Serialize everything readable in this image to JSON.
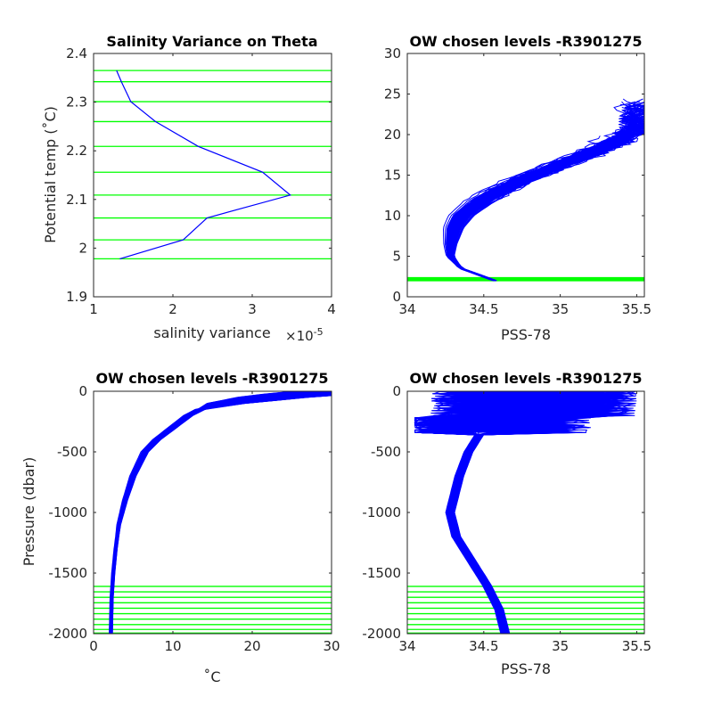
{
  "figure_id": "R3901275",
  "colors": {
    "profiles": "#0000ff",
    "levels": "#00ff00",
    "axes": "#262626"
  },
  "chart_data": [
    {
      "type": "line",
      "title": "Salinity Variance on Theta",
      "xlabel": "salinity variance",
      "x_exponent_label": "×10",
      "x_exponent_value": "-5",
      "ylabel": "Potential temp (˚C)",
      "xlim": [
        1,
        4
      ],
      "ylim": [
        1.9,
        2.4
      ],
      "xticks": [
        "1",
        "2",
        "3",
        "4"
      ],
      "yticks": [
        "1.9",
        "2",
        "2.1",
        "2.2",
        "2.3",
        "2.4"
      ],
      "series": [
        {
          "x": [
            1.33,
            2.13,
            2.43,
            3.48,
            3.13,
            2.32,
            1.78,
            1.47,
            1.35,
            1.29
          ],
          "y": [
            1.978,
            2.017,
            2.062,
            2.109,
            2.156,
            2.209,
            2.26,
            2.301,
            2.342,
            2.365
          ]
        }
      ],
      "chosen_levels_theta": [
        1.978,
        2.017,
        2.062,
        2.109,
        2.156,
        2.209,
        2.26,
        2.301,
        2.342,
        2.365
      ],
      "grid": false
    },
    {
      "type": "line",
      "title": "OW chosen levels -R3901275",
      "xlabel": "PSS-78",
      "ylabel": "",
      "xlim": [
        34,
        35.55
      ],
      "ylim": [
        0,
        30
      ],
      "xticks": [
        "34",
        "34.5",
        "35",
        "35.5"
      ],
      "yticks": [
        "0",
        "5",
        "10",
        "15",
        "20",
        "25",
        "30"
      ],
      "description": "Theta–salinity profiles (many floats, blue) with chosen theta levels (green) near 2 °C",
      "mean_profile": {
        "salinity": [
          34.57,
          34.35,
          34.28,
          34.28,
          34.3,
          34.35,
          34.45,
          34.58,
          34.75,
          34.95,
          35.15,
          35.35,
          35.5
        ],
        "theta": [
          2.0,
          3.5,
          5.0,
          6.5,
          8.5,
          10.0,
          11.5,
          13.0,
          14.5,
          16.0,
          17.5,
          19.0,
          21.0
        ]
      },
      "chosen_levels_theta": [
        1.978,
        2.017,
        2.062,
        2.109,
        2.156,
        2.209,
        2.26,
        2.301,
        2.342,
        2.365
      ],
      "grid": false
    },
    {
      "type": "line",
      "title": "OW chosen levels -R3901275",
      "xlabel": "˚C",
      "ylabel": "Pressure (dbar)",
      "xlim": [
        0,
        30
      ],
      "ylim": [
        -2000,
        0
      ],
      "xticks": [
        "0",
        "10",
        "20",
        "30"
      ],
      "yticks": [
        "-2000",
        "-1500",
        "-1000",
        "-500",
        "0"
      ],
      "description": "Temperature vs pressure profiles with chosen pressure levels (green) below 1600 dbar",
      "mean_profile": {
        "temperature": [
          26.5,
          20.0,
          15.0,
          12.0,
          10.0,
          8.0,
          6.5,
          5.0,
          4.0,
          3.2,
          2.8,
          2.5,
          2.3,
          2.2
        ],
        "pressure": [
          0,
          -40,
          -100,
          -200,
          -300,
          -400,
          -500,
          -700,
          -900,
          -1100,
          -1300,
          -1500,
          -1700,
          -2000
        ]
      },
      "chosen_levels_pressure": [
        -1610,
        -1655,
        -1700,
        -1745,
        -1790,
        -1835,
        -1880,
        -1925,
        -1965,
        -1995
      ],
      "grid": false
    },
    {
      "type": "line",
      "title": "OW chosen levels -R3901275",
      "xlabel": "PSS-78",
      "ylabel": "",
      "xlim": [
        34,
        35.55
      ],
      "ylim": [
        -2000,
        0
      ],
      "xticks": [
        "34",
        "34.5",
        "35",
        "35.5"
      ],
      "yticks": [
        "-2000",
        "-1500",
        "-1000",
        "-500",
        "0"
      ],
      "description": "Salinity vs pressure profiles with chosen pressure levels (green) below 1600 dbar",
      "mean_profile": {
        "salinity": [
          34.6,
          34.5,
          34.4,
          34.34,
          34.3,
          34.28,
          34.32,
          34.42,
          34.52,
          34.6,
          34.64
        ],
        "pressure": [
          -100,
          -300,
          -500,
          -700,
          -900,
          -1000,
          -1200,
          -1400,
          -1600,
          -1800,
          -2000
        ]
      },
      "chosen_levels_pressure": [
        -1610,
        -1655,
        -1700,
        -1745,
        -1790,
        -1835,
        -1880,
        -1925,
        -1965,
        -1995
      ],
      "grid": false
    }
  ]
}
